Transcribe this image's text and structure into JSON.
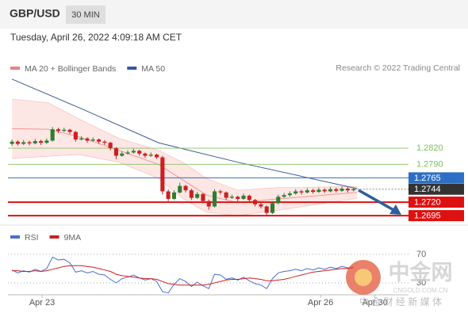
{
  "chart_data": {
    "type": "candlestick",
    "title": "GBP/USD",
    "interval": "30 MIN",
    "subtitle": "Tuesday, April 26, 2022 4:09:18 AM CET",
    "source": "Research © 2022 Trading Central",
    "up_color": "#2f7d32",
    "down_color": "#cc1f1f",
    "xlim": [
      -0.7,
      68.5
    ],
    "ylim": [
      1.2679,
      1.2955
    ],
    "xticks": [
      {
        "value": 5.2,
        "label": "Apr 23"
      },
      {
        "value": 53.3,
        "label": "Apr 26"
      },
      {
        "value": 62.7,
        "label": "Apr 30"
      }
    ],
    "candles": [
      [
        1.2828,
        1.2836,
        1.2824,
        1.2832
      ],
      [
        1.2832,
        1.2835,
        1.2825,
        1.2828
      ],
      [
        1.2828,
        1.2835,
        1.2826,
        1.2831
      ],
      [
        1.2831,
        1.2834,
        1.2825,
        1.2829
      ],
      [
        1.2829,
        1.2837,
        1.2827,
        1.2833
      ],
      [
        1.2833,
        1.2836,
        1.2826,
        1.283
      ],
      [
        1.283,
        1.2838,
        1.2828,
        1.2834
      ],
      [
        1.2834,
        1.2859,
        1.2832,
        1.2855
      ],
      [
        1.2855,
        1.2858,
        1.2848,
        1.2852
      ],
      [
        1.2852,
        1.2858,
        1.285,
        1.2854
      ],
      [
        1.2854,
        1.2856,
        1.2846,
        1.285
      ],
      [
        1.285,
        1.2852,
        1.2832,
        1.2836
      ],
      [
        1.2836,
        1.2842,
        1.2834,
        1.2838
      ],
      [
        1.2838,
        1.284,
        1.283,
        1.2834
      ],
      [
        1.2834,
        1.284,
        1.2832,
        1.2836
      ],
      [
        1.2836,
        1.2838,
        1.2828,
        1.2832
      ],
      [
        1.2832,
        1.2835,
        1.2826,
        1.283
      ],
      [
        1.283,
        1.2832,
        1.2816,
        1.282
      ],
      [
        1.282,
        1.2822,
        1.28,
        1.2806
      ],
      [
        1.2806,
        1.2814,
        1.2804,
        1.281
      ],
      [
        1.281,
        1.2816,
        1.2808,
        1.2812
      ],
      [
        1.2812,
        1.2819,
        1.281,
        1.2815
      ],
      [
        1.2815,
        1.2817,
        1.2806,
        1.281
      ],
      [
        1.281,
        1.2812,
        1.2802,
        1.2806
      ],
      [
        1.2806,
        1.2812,
        1.2804,
        1.2808
      ],
      [
        1.2808,
        1.281,
        1.28,
        1.2803
      ],
      [
        1.2803,
        1.2806,
        1.2734,
        1.274
      ],
      [
        1.274,
        1.2744,
        1.2722,
        1.2726
      ],
      [
        1.2726,
        1.2742,
        1.2724,
        1.2738
      ],
      [
        1.2738,
        1.2756,
        1.2736,
        1.275
      ],
      [
        1.275,
        1.2752,
        1.2738,
        1.2742
      ],
      [
        1.2742,
        1.2745,
        1.2724,
        1.2728
      ],
      [
        1.2728,
        1.2739,
        1.2726,
        1.2735
      ],
      [
        1.2735,
        1.2737,
        1.2718,
        1.2722
      ],
      [
        1.2722,
        1.2725,
        1.2706,
        1.2712
      ],
      [
        1.2712,
        1.2744,
        1.271,
        1.274
      ],
      [
        1.274,
        1.2743,
        1.2734,
        1.2738
      ],
      [
        1.2738,
        1.274,
        1.2724,
        1.2728
      ],
      [
        1.2728,
        1.2734,
        1.2726,
        1.273
      ],
      [
        1.273,
        1.2732,
        1.2722,
        1.2726
      ],
      [
        1.2726,
        1.2736,
        1.2724,
        1.2732
      ],
      [
        1.2732,
        1.2734,
        1.272,
        1.2724
      ],
      [
        1.2724,
        1.2726,
        1.2712,
        1.2716
      ],
      [
        1.2716,
        1.2719,
        1.2708,
        1.2712
      ],
      [
        1.2712,
        1.2714,
        1.2696,
        1.27
      ],
      [
        1.27,
        1.2722,
        1.2698,
        1.2718
      ],
      [
        1.2718,
        1.2734,
        1.2716,
        1.273
      ],
      [
        1.273,
        1.2737,
        1.2728,
        1.2733
      ],
      [
        1.2733,
        1.274,
        1.273,
        1.2736
      ],
      [
        1.2736,
        1.2744,
        1.2734,
        1.274
      ],
      [
        1.274,
        1.2743,
        1.2734,
        1.2738
      ],
      [
        1.2738,
        1.2746,
        1.2736,
        1.2742
      ],
      [
        1.2742,
        1.2745,
        1.2736,
        1.2739
      ],
      [
        1.2739,
        1.2747,
        1.2737,
        1.2743
      ],
      [
        1.2743,
        1.2746,
        1.2737,
        1.274
      ],
      [
        1.274,
        1.2748,
        1.2738,
        1.2744
      ],
      [
        1.2744,
        1.2747,
        1.2738,
        1.2741
      ],
      [
        1.2741,
        1.2749,
        1.2739,
        1.2745
      ],
      [
        1.2745,
        1.2748,
        1.2738,
        1.2742
      ],
      [
        1.2742,
        1.2747,
        1.274,
        1.2744
      ]
    ],
    "overlays": [
      {
        "name": "MA 20 + Bollinger Bands",
        "color": "#f08080",
        "x": [
          0,
          6.2,
          11.6,
          18.5,
          25.3,
          29.5,
          33.6,
          39,
          45.9,
          59.6
        ],
        "values": [
          1.2856,
          1.2855,
          1.2841,
          1.2816,
          1.279,
          1.2761,
          1.2733,
          1.2719,
          1.2726,
          1.2738
        ],
        "upper": [
          1.2911,
          1.2904,
          1.2874,
          1.2838,
          1.2816,
          1.2794,
          1.2764,
          1.2742,
          1.2747,
          1.2749
        ],
        "lower": [
          1.2801,
          1.2805,
          1.2808,
          1.2794,
          1.2764,
          1.2727,
          1.2701,
          1.2695,
          1.2705,
          1.2727
        ]
      },
      {
        "name": "MA 50",
        "color": "#3a5a9a",
        "x": [
          0,
          12,
          25.3,
          39,
          59.6
        ],
        "values": [
          1.2948,
          1.2893,
          1.283,
          1.2794,
          1.2745
        ]
      }
    ],
    "levels": [
      {
        "price": 1.282,
        "label": "1.2820",
        "color": "#7cbf5a",
        "style": "text"
      },
      {
        "price": 1.279,
        "label": "1.2790",
        "color": "#7cbf5a",
        "style": "text"
      },
      {
        "price": 1.2765,
        "label": "1.2765",
        "color": "#2d6fc4",
        "style": "box"
      },
      {
        "price": 1.2744,
        "label": "1.2744",
        "color": "#333333",
        "style": "dotted"
      },
      {
        "price": 1.272,
        "label": "1.2720",
        "color": "#dd1111",
        "style": "thick"
      },
      {
        "price": 1.2695,
        "label": "1.2695",
        "color": "#dd1111",
        "style": "thick"
      }
    ],
    "indicator": {
      "ylim": [
        13.3,
        101
      ],
      "yticks": [
        30,
        70
      ],
      "series": [
        {
          "name": "RSI",
          "color": "#4a6fd0",
          "values": [
            48,
            44,
            47,
            45,
            49,
            46,
            50,
            66,
            62,
            63,
            58,
            45,
            47,
            44,
            46,
            42,
            41,
            35,
            30,
            36,
            38,
            41,
            37,
            34,
            36,
            32,
            18,
            16,
            28,
            36,
            32,
            25,
            31,
            26,
            22,
            42,
            41,
            35,
            37,
            34,
            38,
            33,
            29,
            27,
            22,
            36,
            44,
            46,
            47,
            49,
            47,
            50,
            48,
            51,
            49,
            52,
            50,
            53,
            51,
            52
          ]
        },
        {
          "name": "9MA",
          "color": "#cc1f1f",
          "values": [
            47,
            47,
            46,
            46,
            47,
            46,
            47,
            49,
            51,
            53,
            54,
            54,
            54,
            53,
            52,
            50,
            48,
            46,
            42,
            40,
            39,
            38,
            37,
            36,
            36,
            35,
            32,
            29,
            28,
            27,
            27,
            27,
            27,
            27,
            28,
            30,
            32,
            34,
            35,
            35,
            36,
            37,
            36,
            35,
            33,
            33,
            34,
            35,
            37,
            39,
            41,
            43,
            45,
            46,
            47,
            48,
            49,
            50,
            50,
            51
          ]
        }
      ]
    },
    "watermark": {
      "name": "中金网",
      "site": "CNGOLD.COM.CN",
      "tagline": "中 金 财 经 新 媒 体"
    }
  }
}
